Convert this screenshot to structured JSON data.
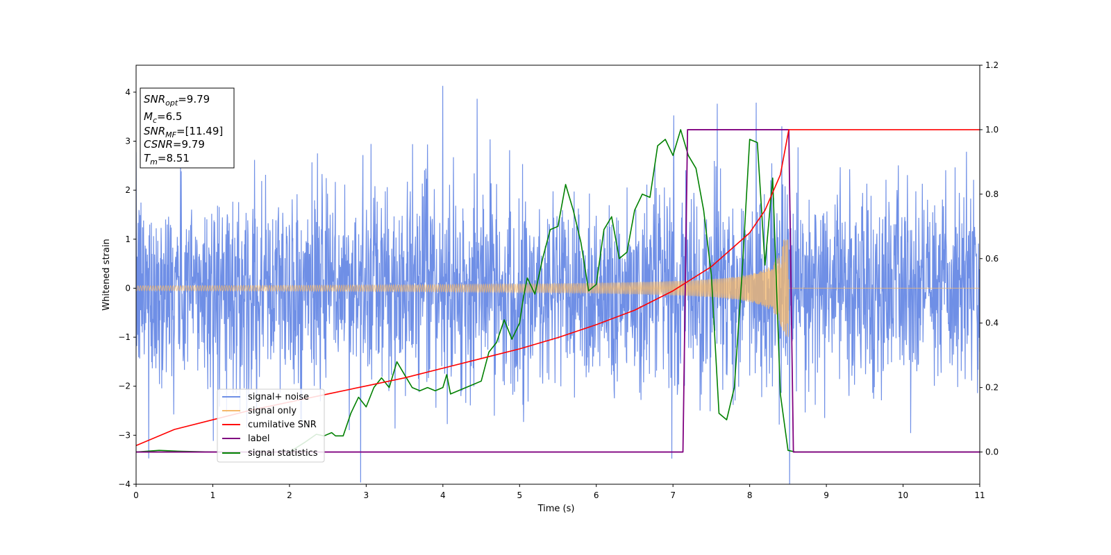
{
  "chart_data": {
    "type": "line",
    "title": "",
    "xlabel": "Time (s)",
    "ylabel": "Whitened strain",
    "xlim": [
      0,
      11
    ],
    "ylim": [
      -4,
      4.55
    ],
    "y2lim": [
      -0.1,
      1.2
    ],
    "x_ticks": [
      0,
      1,
      2,
      3,
      4,
      5,
      6,
      7,
      8,
      9,
      10,
      11
    ],
    "y_ticks": [
      -4,
      -3,
      -2,
      -1,
      0,
      1,
      2,
      3,
      4
    ],
    "y2_ticks": [
      "0.0",
      "0.2",
      "0.4",
      "0.6",
      "0.8",
      "1.0",
      "1.2"
    ],
    "x_tick_labels": [
      "0",
      "1",
      "2",
      "3",
      "4",
      "5",
      "6",
      "7",
      "8",
      "9",
      "10",
      "11"
    ],
    "y_tick_labels": [
      "−4",
      "−3",
      "−2",
      "−1",
      "0",
      "1",
      "2",
      "3",
      "4"
    ],
    "grid": false,
    "legend_position": "lower-left",
    "annotation": {
      "snr_opt_base": "SNR",
      "snr_opt_sub": "opt",
      "snr_opt_val": "=9.79",
      "mc_base": "M",
      "mc_sub": "c",
      "mc_val": "=6.5",
      "snr_mf_base": "SNR",
      "snr_mf_sub": "MF",
      "snr_mf_val": "=[11.49]",
      "csnr_base": "CSNR",
      "csnr_val": "=9.79",
      "tm_base": "T",
      "tm_sub": "m",
      "tm_val": "=8.51"
    },
    "series": [
      {
        "name": "signal+ noise",
        "axis": "left",
        "color": "#6f8fe6",
        "description_values": "white Gaussian noise (std ≈ 1) plus chirp signal, x from 0 to 11 s"
      },
      {
        "name": "signal only",
        "axis": "left",
        "color": "#f5b86a",
        "chirp": {
          "start": 0,
          "end": 8.51,
          "amp_start": 0.05,
          "amp_end": 1.0
        }
      },
      {
        "name": "cumilative SNR",
        "axis": "right",
        "color": "#ff0000",
        "x": [
          0,
          0.5,
          1,
          1.5,
          2,
          2.5,
          3,
          3.5,
          4,
          4.5,
          5,
          5.5,
          6,
          6.5,
          7,
          7.5,
          8,
          8.2,
          8.4,
          8.51,
          11
        ],
        "y": [
          0.02,
          0.07,
          0.1,
          0.13,
          0.155,
          0.18,
          0.205,
          0.23,
          0.26,
          0.29,
          0.32,
          0.355,
          0.395,
          0.44,
          0.5,
          0.575,
          0.68,
          0.75,
          0.86,
          1.0,
          1.0
        ]
      },
      {
        "name": "label",
        "axis": "right",
        "color": "#800080",
        "x": [
          0,
          7.13,
          7.19,
          8.51,
          8.57,
          11
        ],
        "y": [
          0,
          0,
          1,
          1,
          0,
          0
        ]
      },
      {
        "name": "signal statistics",
        "axis": "right",
        "color": "#008000",
        "x": [
          0,
          0.3,
          0.6,
          1,
          1.5,
          2,
          2.2,
          2.35,
          2.45,
          2.55,
          2.6,
          2.7,
          2.8,
          2.9,
          3.0,
          3.1,
          3.2,
          3.3,
          3.4,
          3.5,
          3.6,
          3.7,
          3.8,
          3.9,
          4.0,
          4.05,
          4.1,
          4.2,
          4.3,
          4.4,
          4.5,
          4.6,
          4.7,
          4.8,
          4.9,
          5.0,
          5.05,
          5.1,
          5.2,
          5.3,
          5.4,
          5.5,
          5.6,
          5.7,
          5.8,
          5.9,
          6.0,
          6.1,
          6.2,
          6.3,
          6.4,
          6.5,
          6.6,
          6.7,
          6.8,
          6.9,
          7.0,
          7.1,
          7.2,
          7.3,
          7.4,
          7.5,
          7.6,
          7.7,
          7.8,
          7.9,
          8.0,
          8.1,
          8.2,
          8.3,
          8.4,
          8.5,
          8.6,
          8.8,
          9,
          10,
          11
        ],
        "y": [
          0,
          0.005,
          0.002,
          0,
          0,
          0,
          0.03,
          0.055,
          0.05,
          0.06,
          0.05,
          0.05,
          0.12,
          0.17,
          0.14,
          0.2,
          0.23,
          0.2,
          0.28,
          0.24,
          0.2,
          0.19,
          0.2,
          0.19,
          0.2,
          0.24,
          0.18,
          0.19,
          0.2,
          0.21,
          0.22,
          0.31,
          0.34,
          0.41,
          0.35,
          0.4,
          0.48,
          0.54,
          0.49,
          0.6,
          0.69,
          0.7,
          0.83,
          0.75,
          0.65,
          0.5,
          0.52,
          0.69,
          0.73,
          0.6,
          0.62,
          0.75,
          0.8,
          0.79,
          0.95,
          0.97,
          0.92,
          1.0,
          0.92,
          0.88,
          0.75,
          0.55,
          0.12,
          0.1,
          0.2,
          0.55,
          0.97,
          0.96,
          0.58,
          0.85,
          0.18,
          0.005,
          0,
          0,
          0,
          0,
          0
        ]
      }
    ]
  }
}
